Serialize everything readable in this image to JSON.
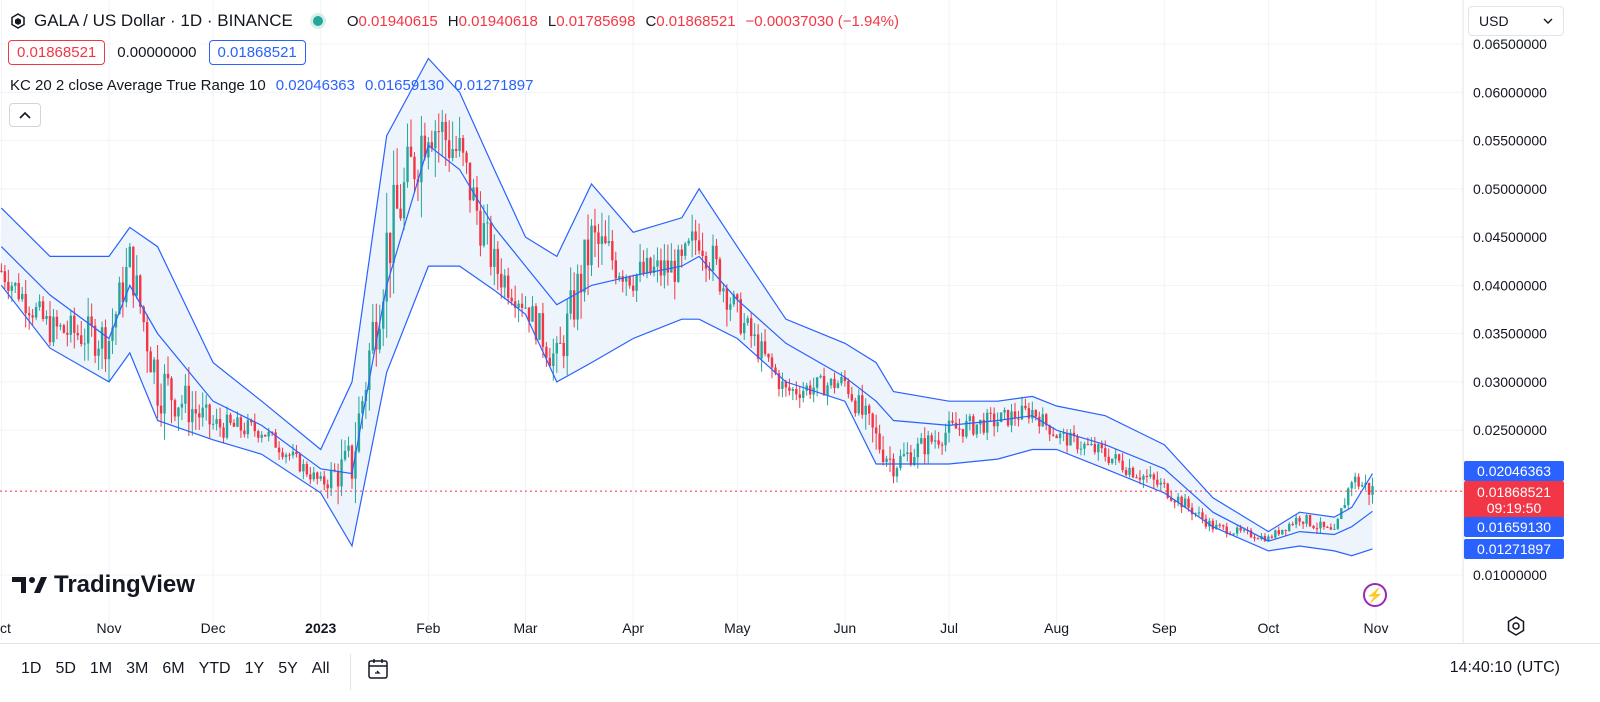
{
  "header": {
    "title": "GALA / US Dollar · 1D · BINANCE",
    "ohlc": [
      {
        "k": "O",
        "v": "0.01940615"
      },
      {
        "k": "H",
        "v": "0.01940618"
      },
      {
        "k": "L",
        "v": "0.01785698"
      },
      {
        "k": "C",
        "v": "0.01868521"
      }
    ],
    "change": "−0.00037030 (−1.94%)"
  },
  "pills": {
    "bid": "0.01868521",
    "spread": "0.00000000",
    "ask": "0.01868521"
  },
  "indicator": {
    "name": "KC 20 2 close Average True Range 10",
    "upper": "0.02046363",
    "middle": "0.01659130",
    "lower": "0.01271897"
  },
  "currency": "USD",
  "brand": "TradingView",
  "price_axis": [
    "0.06500000",
    "0.06000000",
    "0.05500000",
    "0.05000000",
    "0.04500000",
    "0.04000000",
    "0.03500000",
    "0.03000000",
    "0.02500000",
    "0.01000000"
  ],
  "price_labels": {
    "upper": "0.02046363",
    "last": "0.01868521",
    "countdown": "09:19:50",
    "middle": "0.01659130",
    "lower": "0.01271897"
  },
  "time_axis": [
    "ct",
    "Nov",
    "Dec",
    "2023",
    "Feb",
    "Mar",
    "Apr",
    "May",
    "Jun",
    "Jul",
    "Aug",
    "Sep",
    "Oct",
    "Nov"
  ],
  "ranges": [
    "1D",
    "5D",
    "1M",
    "3M",
    "6M",
    "YTD",
    "1Y",
    "5Y",
    "All"
  ],
  "clock": "14:40:10 (UTC)",
  "colors": {
    "up": "#26a69a",
    "down": "#f23645",
    "band": "#2962ff",
    "fill": "#eef4fb"
  },
  "chart_data": {
    "type": "line",
    "title": "GALA / US Dollar · 1D · BINANCE",
    "xlabel": "",
    "ylabel": "",
    "ylim": [
      0.008,
      0.0665
    ],
    "x_ticks": [
      "ct",
      "Nov",
      "Dec",
      "2023",
      "Feb",
      "Mar",
      "Apr",
      "May",
      "Jun",
      "Jul",
      "Aug",
      "Sep",
      "Oct",
      "Nov"
    ],
    "y_ticks": [
      0.065,
      0.06,
      0.055,
      0.05,
      0.045,
      0.04,
      0.035,
      0.03,
      0.025,
      0.01
    ],
    "grid": true,
    "x": [
      "2022-10-01",
      "2022-10-15",
      "2022-11-01",
      "2022-11-07",
      "2022-11-15",
      "2022-12-01",
      "2022-12-15",
      "2023-01-01",
      "2023-01-10",
      "2023-01-20",
      "2023-02-01",
      "2023-02-10",
      "2023-02-20",
      "2023-03-01",
      "2023-03-10",
      "2023-03-20",
      "2023-04-01",
      "2023-04-15",
      "2023-04-20",
      "2023-05-01",
      "2023-05-15",
      "2023-06-01",
      "2023-06-10",
      "2023-06-15",
      "2023-07-01",
      "2023-07-15",
      "2023-07-25",
      "2023-08-01",
      "2023-08-15",
      "2023-09-01",
      "2023-09-15",
      "2023-10-01",
      "2023-10-10",
      "2023-10-20",
      "2023-10-25",
      "2023-10-31"
    ],
    "series": [
      {
        "name": "Close",
        "values": [
          0.0415,
          0.0355,
          0.0345,
          0.0425,
          0.03,
          0.0255,
          0.025,
          0.0195,
          0.0215,
          0.044,
          0.0575,
          0.0535,
          0.042,
          0.038,
          0.032,
          0.0445,
          0.041,
          0.042,
          0.0455,
          0.037,
          0.029,
          0.03,
          0.024,
          0.0215,
          0.025,
          0.026,
          0.027,
          0.0245,
          0.0225,
          0.019,
          0.015,
          0.0138,
          0.016,
          0.0142,
          0.02,
          0.0187
        ]
      },
      {
        "name": "KC upper",
        "values": [
          0.048,
          0.043,
          0.043,
          0.046,
          0.044,
          0.032,
          0.028,
          0.023,
          0.03,
          0.0555,
          0.0635,
          0.06,
          0.052,
          0.045,
          0.043,
          0.0505,
          0.0455,
          0.047,
          0.05,
          0.044,
          0.0365,
          0.034,
          0.032,
          0.029,
          0.028,
          0.028,
          0.0285,
          0.0275,
          0.0265,
          0.0235,
          0.018,
          0.0145,
          0.0165,
          0.016,
          0.017,
          0.0205
        ]
      },
      {
        "name": "KC middle",
        "values": [
          0.044,
          0.039,
          0.0345,
          0.04,
          0.035,
          0.028,
          0.0255,
          0.021,
          0.0205,
          0.04,
          0.0545,
          0.052,
          0.046,
          0.042,
          0.038,
          0.04,
          0.041,
          0.042,
          0.043,
          0.0385,
          0.034,
          0.0305,
          0.028,
          0.026,
          0.0255,
          0.026,
          0.0265,
          0.025,
          0.0235,
          0.021,
          0.0165,
          0.0135,
          0.0145,
          0.0142,
          0.015,
          0.0166
        ]
      },
      {
        "name": "KC lower",
        "values": [
          0.04,
          0.0335,
          0.03,
          0.033,
          0.026,
          0.024,
          0.0225,
          0.0185,
          0.013,
          0.031,
          0.042,
          0.042,
          0.0395,
          0.037,
          0.03,
          0.032,
          0.0345,
          0.0365,
          0.0365,
          0.0345,
          0.03,
          0.028,
          0.0215,
          0.0215,
          0.0215,
          0.022,
          0.023,
          0.023,
          0.021,
          0.0185,
          0.015,
          0.0125,
          0.013,
          0.0125,
          0.012,
          0.0127
        ]
      }
    ],
    "last_price": 0.01868521
  }
}
